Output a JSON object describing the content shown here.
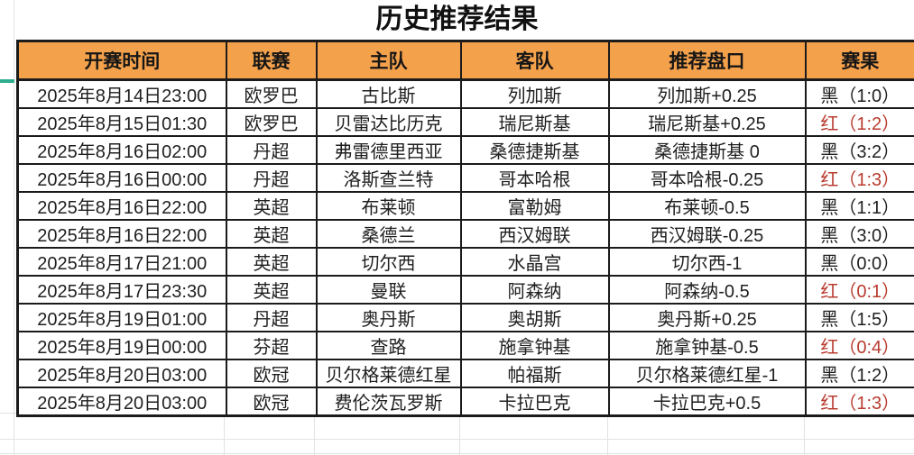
{
  "title": "历史推荐结果",
  "colors": {
    "header_bg": "#f4a14c",
    "result_red": "#b83b2e",
    "result_black": "#1f1f1f",
    "freeze_marker_teal": "#2fae8f",
    "grid_line": "#e2e2e2"
  },
  "table": {
    "headers": [
      "开赛时间",
      "联赛",
      "主队",
      "客队",
      "推荐盘口",
      "赛果"
    ],
    "rows": [
      {
        "time": "2025年8月14日23:00",
        "league": "欧罗巴",
        "home": "古比斯",
        "away": "列加斯",
        "handicap": "列加斯+0.25",
        "result": "黑（1:0）",
        "outcome": "black"
      },
      {
        "time": "2025年8月15日01:30",
        "league": "欧罗巴",
        "home": "贝雷达比历克",
        "away": "瑞尼斯基",
        "handicap": "瑞尼斯基+0.25",
        "result": "红（1:2）",
        "outcome": "red"
      },
      {
        "time": "2025年8月16日02:00",
        "league": "丹超",
        "home": "弗雷德里西亚",
        "away": "桑德捷斯基",
        "handicap": "桑德捷斯基 0",
        "result": "黑（3:2）",
        "outcome": "black"
      },
      {
        "time": "2025年8月16日00:00",
        "league": "丹超",
        "home": "洛斯查兰特",
        "away": "哥本哈根",
        "handicap": "哥本哈根-0.25",
        "result": "红（1:3）",
        "outcome": "red"
      },
      {
        "time": "2025年8月16日22:00",
        "league": "英超",
        "home": "布莱顿",
        "away": "富勒姆",
        "handicap": "布莱顿-0.5",
        "result": "黑（1:1）",
        "outcome": "black"
      },
      {
        "time": "2025年8月16日22:00",
        "league": "英超",
        "home": "桑德兰",
        "away": "西汉姆联",
        "handicap": "西汉姆联-0.25",
        "result": "黑（3:0）",
        "outcome": "black"
      },
      {
        "time": "2025年8月17日21:00",
        "league": "英超",
        "home": "切尔西",
        "away": "水晶宫",
        "handicap": "切尔西-1",
        "result": "黑（0:0）",
        "outcome": "black"
      },
      {
        "time": "2025年8月17日23:30",
        "league": "英超",
        "home": "曼联",
        "away": "阿森纳",
        "handicap": "阿森纳-0.5",
        "result": "红（0:1）",
        "outcome": "red"
      },
      {
        "time": "2025年8月19日01:00",
        "league": "丹超",
        "home": "奥丹斯",
        "away": "奥胡斯",
        "handicap": "奥丹斯+0.25",
        "result": "黑（1:5）",
        "outcome": "black"
      },
      {
        "time": "2025年8月19日00:00",
        "league": "芬超",
        "home": "查路",
        "away": "施拿钟基",
        "handicap": "施拿钟基-0.5",
        "result": "红（0:4）",
        "outcome": "red"
      },
      {
        "time": "2025年8月20日03:00",
        "league": "欧冠",
        "home": "贝尔格莱德红星",
        "away": "帕福斯",
        "handicap": "贝尔格莱德红星-1",
        "result": "黑（1:2）",
        "outcome": "black"
      },
      {
        "time": "2025年8月20日03:00",
        "league": "欧冠",
        "home": "费伦茨瓦罗斯",
        "away": "卡拉巴克",
        "handicap": "卡拉巴克+0.5",
        "result": "红（1:3）",
        "outcome": "red"
      }
    ]
  }
}
